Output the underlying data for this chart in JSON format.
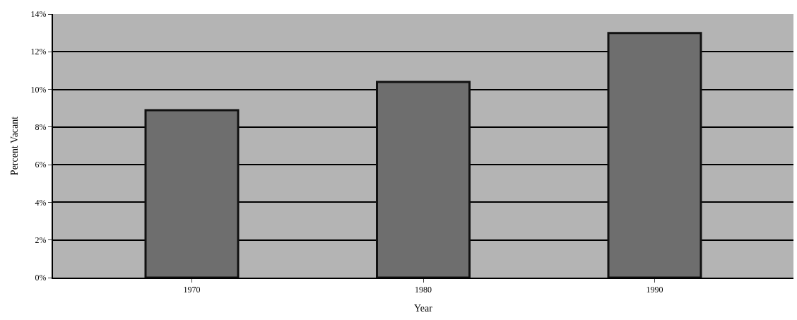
{
  "chart_data": {
    "type": "bar",
    "xlabel": "Year",
    "ylabel": "Percent Vacant",
    "categories": [
      "1970",
      "1980",
      "1990"
    ],
    "values": [
      8.9,
      10.4,
      13.0
    ],
    "color": "#6e6e6e",
    "ylim": [
      0,
      14
    ],
    "yticks": [
      {
        "value": 0,
        "label": "0%"
      },
      {
        "value": 2,
        "label": "2%"
      },
      {
        "value": 4,
        "label": "4%"
      },
      {
        "value": 6,
        "label": "6%"
      },
      {
        "value": 8,
        "label": "8%"
      },
      {
        "value": 10,
        "label": "10%"
      },
      {
        "value": 12,
        "label": "12%"
      },
      {
        "value": 14,
        "label": "14%"
      }
    ],
    "grid": "y",
    "legend": false
  }
}
